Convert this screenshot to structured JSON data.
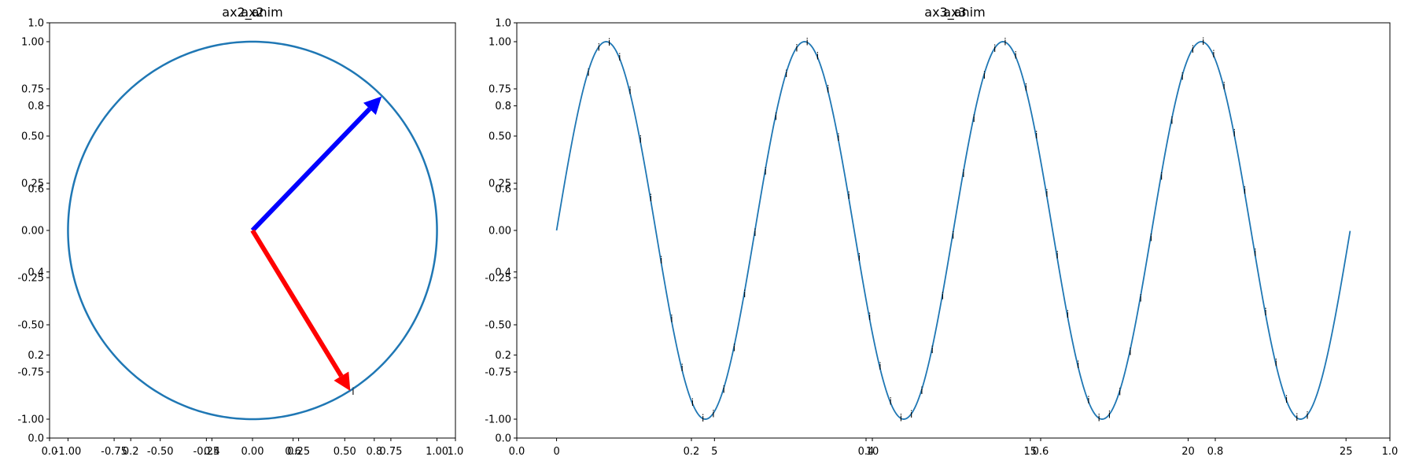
{
  "chart_data": [
    {
      "type": "line",
      "title_overlay": [
        "ax2",
        "ax2_anim"
      ],
      "aspect": "equal",
      "circle": {
        "center": [
          0,
          0
        ],
        "radius": 1.0,
        "color": "#1f77b4"
      },
      "arrows": [
        {
          "name": "blue-arrow",
          "from": [
            0,
            0
          ],
          "to": [
            0.7,
            0.71
          ],
          "color": "#0000ff"
        },
        {
          "name": "red-arrow",
          "from": [
            0,
            0
          ],
          "to": [
            0.53,
            -0.85
          ],
          "color": "#ff0000"
        }
      ],
      "annotations": [
        {
          "text": "i",
          "x": 0.53,
          "y": -0.85
        }
      ],
      "xlim": [
        -1.1,
        1.1
      ],
      "ylim": [
        -1.1,
        1.1
      ],
      "xticks": [
        "-1.00",
        "-0.75",
        "-0.50",
        "-0.25",
        "0.00",
        "0.25",
        "0.50",
        "0.75",
        "1.00"
      ],
      "yticks": [
        "-1.00",
        "-0.75",
        "-0.50",
        "-0.25",
        "0.00",
        "0.25",
        "0.50",
        "0.75",
        "1.00"
      ],
      "overlay_xticks": [
        "0.0",
        "0.2",
        "0.4",
        "0.6",
        "0.8",
        "1.0"
      ],
      "overlay_yticks": [
        "0.0",
        "0.2",
        "0.4",
        "0.6",
        "0.8",
        "1.0"
      ]
    },
    {
      "type": "line",
      "title_overlay": [
        "ax3",
        "ax3_anim"
      ],
      "series": [
        {
          "function": "sin",
          "x_start": 0,
          "x_end": 8,
          "period_in_pi": true,
          "color": "#1f77b4"
        }
      ],
      "x_range": [
        0,
        25.13
      ],
      "annotation_text": "i",
      "annotation_every": 0.33,
      "annotation_start": 0.99,
      "xlim": [
        -1.26,
        26.39
      ],
      "ylim": [
        -1.1,
        1.1
      ],
      "xticks": [
        "0",
        "5",
        "10",
        "15",
        "20",
        "25"
      ],
      "yticks": [
        "-1.00",
        "-0.75",
        "-0.50",
        "-0.25",
        "0.00",
        "0.25",
        "0.50",
        "0.75",
        "1.00"
      ],
      "overlay_xticks": [
        "0.0",
        "0.2",
        "0.4",
        "0.6",
        "0.8",
        "1.0"
      ],
      "overlay_yticks": [
        "0.0",
        "0.2",
        "0.4",
        "0.6",
        "0.8",
        "1.0"
      ]
    }
  ]
}
